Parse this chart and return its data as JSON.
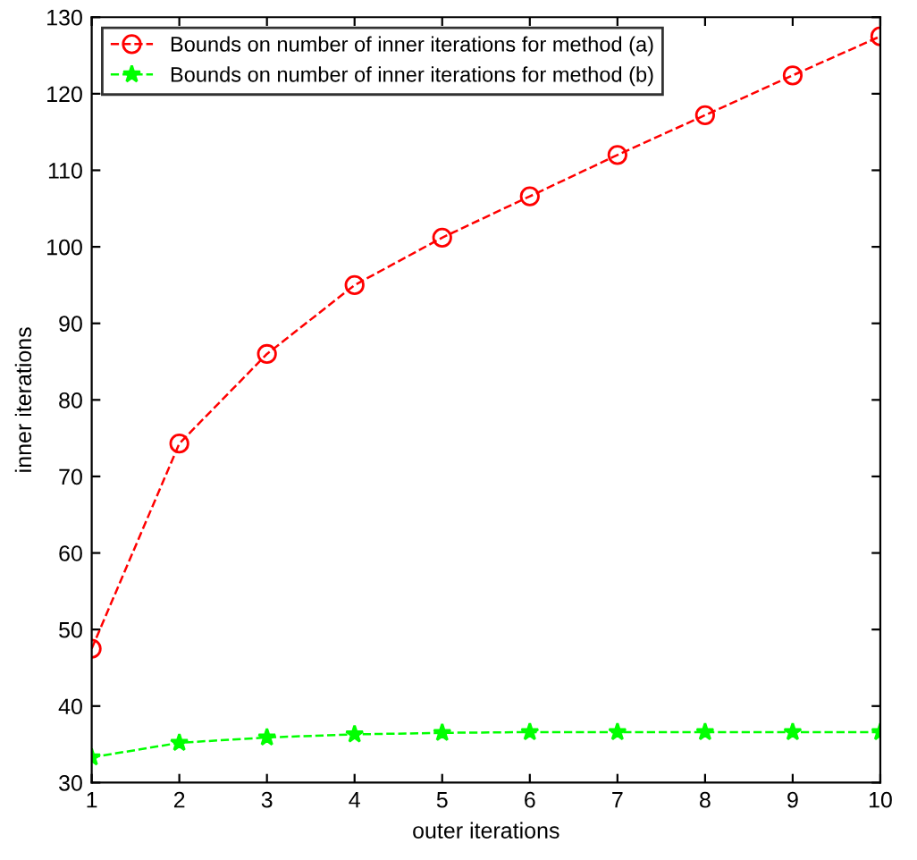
{
  "chart_data": {
    "type": "line",
    "xlabel": "outer iterations",
    "ylabel": "inner iterations",
    "x": [
      1,
      2,
      3,
      4,
      5,
      6,
      7,
      8,
      9,
      10
    ],
    "series": [
      {
        "name": "Bounds on number of inner iterations for method (a)",
        "color": "#ff0000",
        "marker": "circle",
        "line_style": "dashed",
        "values": [
          47.5,
          74.3,
          86.0,
          95.0,
          101.2,
          106.6,
          112.0,
          117.2,
          122.4,
          127.5
        ]
      },
      {
        "name": "Bounds on number of inner iterations for method (b)",
        "color": "#00ff00",
        "marker": "star",
        "line_style": "dashed",
        "values": [
          33.3,
          35.2,
          35.9,
          36.3,
          36.5,
          36.6,
          36.6,
          36.6,
          36.6,
          36.6
        ]
      }
    ],
    "xlim": [
      1,
      10
    ],
    "xticks": [
      1,
      2,
      3,
      4,
      5,
      6,
      7,
      8,
      9,
      10
    ],
    "ylim": [
      30,
      130
    ],
    "yticks": [
      30,
      40,
      50,
      60,
      70,
      80,
      90,
      100,
      110,
      120,
      130
    ],
    "grid": false,
    "legend": "top left"
  }
}
